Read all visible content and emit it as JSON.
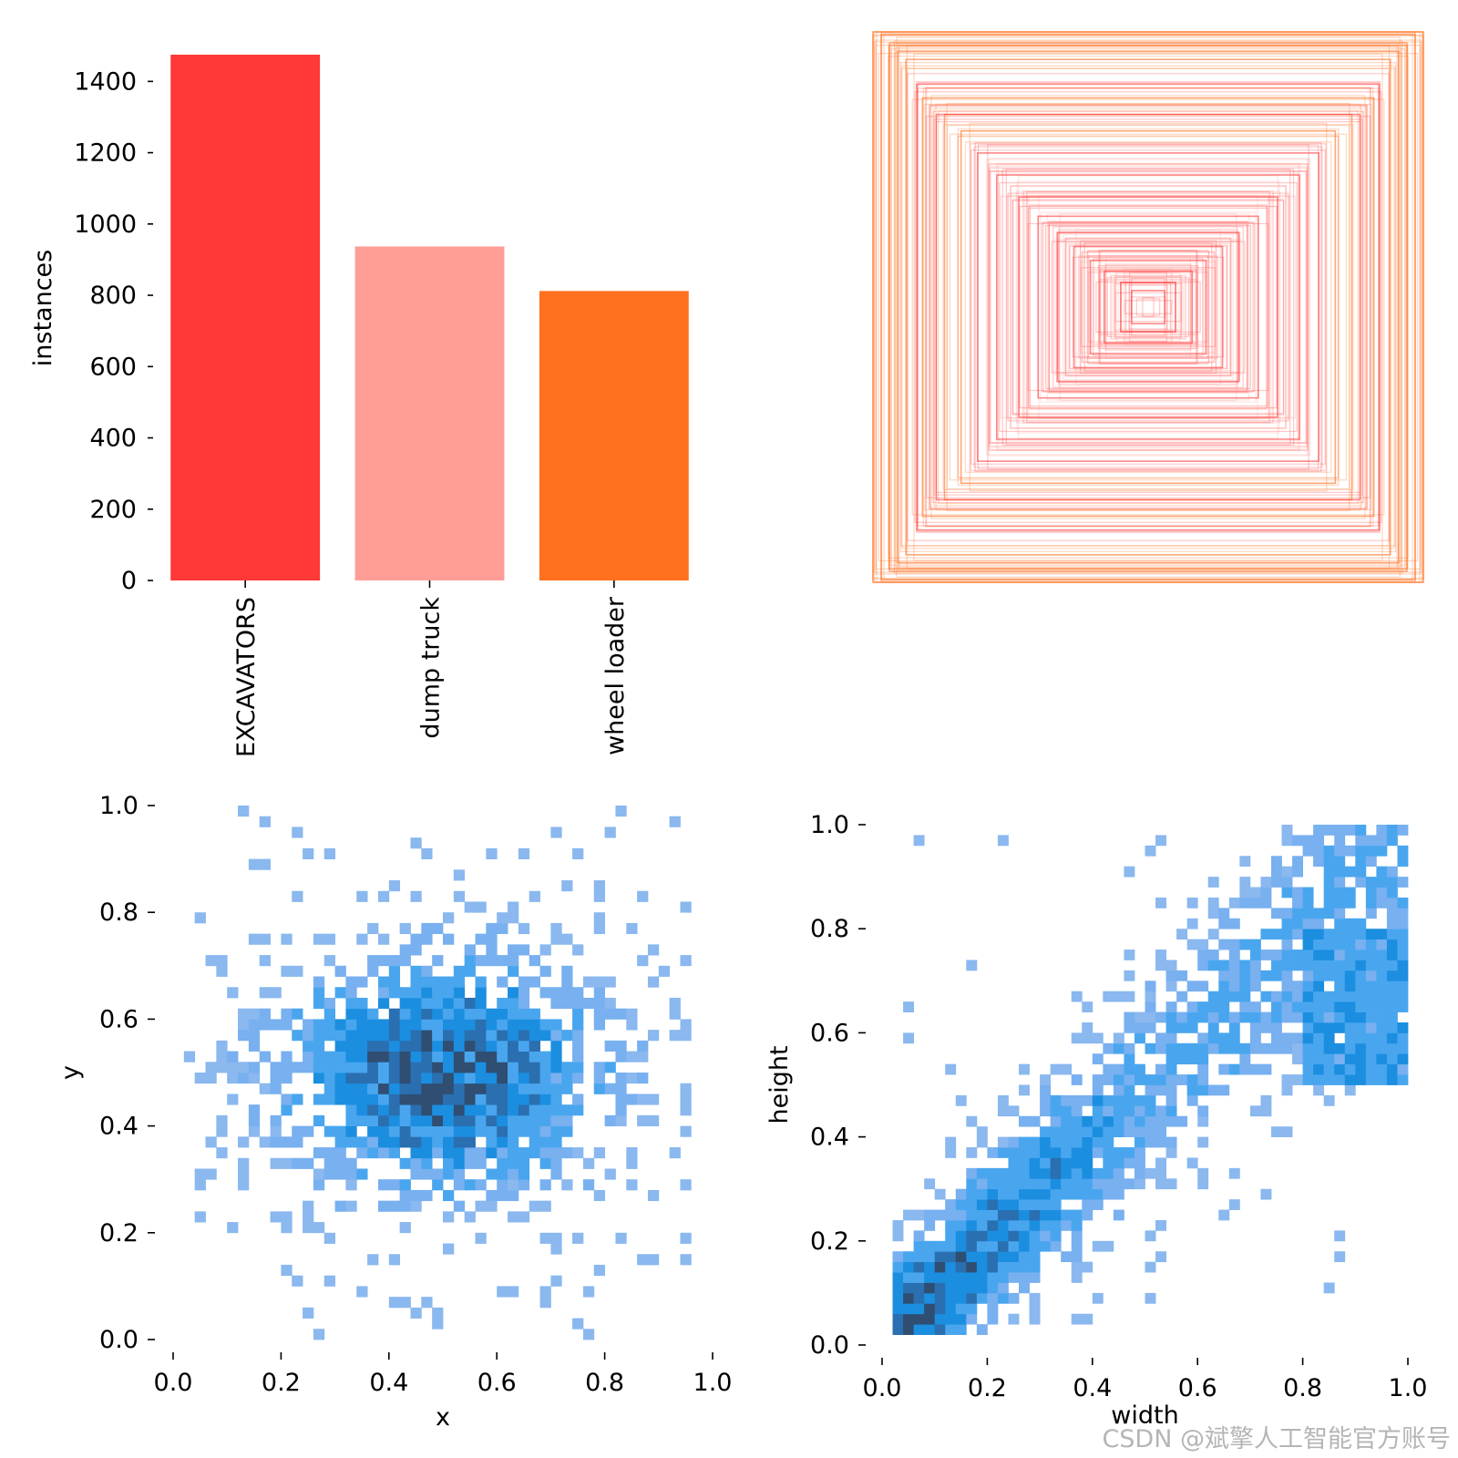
{
  "colors": {
    "excavators": "#ff3838",
    "dump_truck": "#ff9d97",
    "wheel_loader": "#ff701f",
    "hist_light": "#8ab8ef",
    "hist_mid": "#49a6ee",
    "hist_strong": "#1b8ee0",
    "hist_dark": "#2f4e72",
    "tick": "#000000"
  },
  "chart_data": [
    {
      "type": "bar",
      "ylabel": "instances",
      "xlabel": "",
      "ylim": [
        0,
        1475
      ],
      "yticks": [
        "0",
        "200",
        "400",
        "600",
        "800",
        "1000",
        "1200",
        "1400"
      ],
      "categories": [
        "EXCAVATORS",
        "dump truck",
        "wheel loader"
      ],
      "values": [
        1475,
        937,
        812
      ],
      "bar_colors": [
        "#ff3838",
        "#ff9d97",
        "#ff701f"
      ]
    },
    {
      "type": "box-overlay",
      "title": "",
      "description_boxes": "centered label boxes, normalized width/height",
      "box_samples": [
        {
          "w": 1.0,
          "h": 1.0,
          "class": "wheel loader"
        },
        {
          "w": 0.97,
          "h": 0.99,
          "class": "wheel loader"
        },
        {
          "w": 0.94,
          "h": 0.96,
          "class": "wheel loader"
        },
        {
          "w": 0.91,
          "h": 0.93,
          "class": "wheel loader"
        },
        {
          "w": 0.88,
          "h": 0.9,
          "class": "wheel loader"
        },
        {
          "w": 0.82,
          "h": 0.76,
          "class": "wheel loader"
        },
        {
          "w": 0.74,
          "h": 0.7,
          "class": "wheel loader"
        },
        {
          "w": 0.68,
          "h": 0.64,
          "class": "wheel loader"
        },
        {
          "w": 0.84,
          "h": 0.81,
          "class": "EXCAVATORS"
        },
        {
          "w": 0.77,
          "h": 0.7,
          "class": "EXCAVATORS"
        },
        {
          "w": 0.62,
          "h": 0.56,
          "class": "EXCAVATORS"
        },
        {
          "w": 0.55,
          "h": 0.48,
          "class": "EXCAVATORS"
        },
        {
          "w": 0.47,
          "h": 0.4,
          "class": "EXCAVATORS"
        },
        {
          "w": 0.4,
          "h": 0.33,
          "class": "EXCAVATORS"
        },
        {
          "w": 0.33,
          "h": 0.27,
          "class": "EXCAVATORS"
        },
        {
          "w": 0.27,
          "h": 0.22,
          "class": "EXCAVATORS"
        },
        {
          "w": 0.21,
          "h": 0.17,
          "class": "EXCAVATORS"
        },
        {
          "w": 0.16,
          "h": 0.13,
          "class": "EXCAVATORS"
        },
        {
          "w": 0.1,
          "h": 0.09,
          "class": "EXCAVATORS"
        },
        {
          "w": 0.06,
          "h": 0.06,
          "class": "EXCAVATORS"
        },
        {
          "w": 0.58,
          "h": 0.52,
          "class": "dump truck"
        },
        {
          "w": 0.5,
          "h": 0.44,
          "class": "dump truck"
        },
        {
          "w": 0.43,
          "h": 0.37,
          "class": "dump truck"
        },
        {
          "w": 0.36,
          "h": 0.31,
          "class": "dump truck"
        },
        {
          "w": 0.3,
          "h": 0.25,
          "class": "dump truck"
        },
        {
          "w": 0.24,
          "h": 0.2,
          "class": "dump truck"
        },
        {
          "w": 0.18,
          "h": 0.15,
          "class": "dump truck"
        },
        {
          "w": 0.12,
          "h": 0.11,
          "class": "dump truck"
        }
      ]
    },
    {
      "type": "heatmap",
      "xlabel": "x",
      "ylabel": "y",
      "xlim": [
        0,
        1
      ],
      "ylim": [
        0,
        1
      ],
      "xticks": [
        "0.0",
        "0.2",
        "0.4",
        "0.6",
        "0.8",
        "1.0"
      ],
      "yticks": [
        "0.0",
        "0.2",
        "0.4",
        "0.6",
        "0.8",
        "1.0"
      ],
      "bins": 50,
      "distribution": {
        "center": [
          0.5,
          0.5
        ],
        "spread": [
          0.21,
          0.15
        ],
        "value_range": [
          0.02,
          0.96
        ]
      }
    },
    {
      "type": "heatmap",
      "xlabel": "width",
      "ylabel": "height",
      "xlim": [
        0,
        1
      ],
      "ylim": [
        0,
        1
      ],
      "xticks": [
        "0.0",
        "0.2",
        "0.4",
        "0.6",
        "0.8",
        "1.0"
      ],
      "yticks": [
        "0.0",
        "0.2",
        "0.4",
        "0.6",
        "0.8",
        "1.0"
      ],
      "bins": 50,
      "distribution": {
        "trend": "height ≈ width",
        "dense_region": [
          0.05,
          0.5
        ],
        "spread": 0.09
      }
    }
  ],
  "watermark": "CSDN @斌擎人工智能官方账号"
}
